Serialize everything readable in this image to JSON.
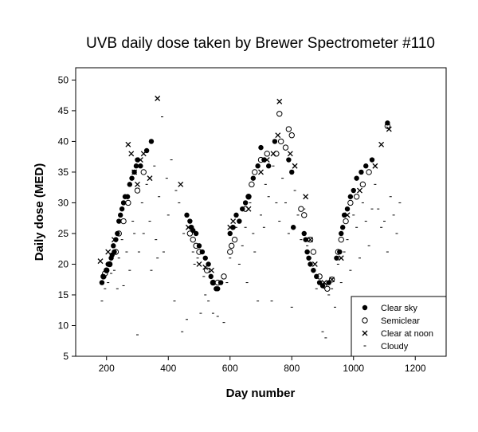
{
  "chart_data": {
    "type": "scatter",
    "title": "UVB daily dose taken by Brewer Spectrometer #110",
    "xlabel": "Day number",
    "ylabel": "Daily dose (MED)",
    "xlim": [
      100,
      1300
    ],
    "ylim": [
      5,
      52
    ],
    "xticks": [
      200,
      400,
      600,
      800,
      1000,
      1200
    ],
    "yticks": [
      5,
      10,
      15,
      20,
      25,
      30,
      35,
      40,
      45,
      50
    ],
    "grid": false,
    "legend_position": "bottom-right",
    "series": [
      {
        "name": "Clear sky",
        "marker": "filled-circle",
        "color": "#000000",
        "x": [
          185,
          190,
          200,
          205,
          210,
          215,
          218,
          222,
          225,
          230,
          235,
          240,
          245,
          250,
          255,
          260,
          268,
          275,
          282,
          290,
          296,
          300,
          310,
          330,
          345,
          460,
          470,
          475,
          480,
          490,
          500,
          510,
          520,
          530,
          538,
          545,
          555,
          560,
          570,
          600,
          610,
          620,
          630,
          640,
          650,
          660,
          675,
          690,
          700,
          710,
          725,
          745,
          790,
          800,
          805,
          840,
          845,
          850,
          855,
          860,
          870,
          880,
          890,
          900,
          920,
          945,
          955,
          960,
          965,
          970,
          980,
          990,
          1000,
          1010,
          1025,
          1040,
          1060,
          1110
        ],
        "y": [
          17,
          18,
          19,
          20,
          20,
          21,
          21.5,
          23,
          22,
          24,
          25,
          27,
          28,
          29,
          30,
          31,
          31,
          33,
          34,
          35,
          36,
          37,
          36,
          38.5,
          40,
          28,
          27,
          26,
          25.5,
          25,
          23,
          22,
          21,
          20,
          18,
          17,
          16,
          16,
          17,
          25,
          26,
          28,
          27,
          29,
          30,
          31,
          34,
          36,
          39,
          37,
          36,
          40,
          37,
          35,
          26,
          25,
          24,
          22,
          21,
          20,
          19,
          18,
          17,
          16.5,
          17,
          21,
          22,
          25,
          26,
          28,
          29,
          31,
          32,
          34,
          35,
          36,
          37,
          43
        ]
      },
      {
        "name": "Semiclear",
        "marker": "open-circle",
        "color": "#000000",
        "x": [
          190,
          195,
          200,
          210,
          230,
          240,
          255,
          270,
          300,
          320,
          470,
          480,
          490,
          500,
          525,
          545,
          560,
          580,
          600,
          605,
          615,
          650,
          660,
          670,
          680,
          700,
          720,
          750,
          760,
          765,
          780,
          790,
          800,
          830,
          840,
          860,
          870,
          890,
          905,
          915,
          930,
          950,
          960,
          975,
          990,
          1010,
          1030,
          1050,
          1110
        ],
        "y": [
          18,
          18.5,
          19,
          20,
          22,
          25,
          27,
          30,
          32,
          35,
          25,
          24,
          23,
          22,
          19,
          17,
          17,
          18,
          22,
          23,
          24,
          29,
          31,
          33,
          35,
          37,
          38,
          38,
          44.5,
          40,
          39,
          42,
          41,
          29,
          28,
          24,
          22,
          18,
          16.5,
          16,
          17.5,
          22,
          24,
          27,
          30,
          31,
          33,
          35,
          42.5
        ]
      },
      {
        "name": "Clear at noon",
        "marker": "cross",
        "color": "#000000",
        "x": [
          180,
          205,
          225,
          270,
          280,
          290,
          300,
          310,
          320,
          340,
          365,
          440,
          465,
          500,
          520,
          540,
          600,
          610,
          660,
          700,
          720,
          740,
          755,
          760,
          795,
          810,
          845,
          860,
          875,
          905,
          930,
          960,
          980,
          1020,
          1070,
          1090,
          1115
        ],
        "y": [
          20.5,
          22,
          24,
          39.5,
          38,
          35,
          33,
          37,
          38,
          34,
          47,
          33,
          26,
          20,
          19.5,
          19,
          26,
          27,
          29,
          35,
          37,
          38,
          41,
          46.5,
          38,
          36,
          31,
          24,
          20,
          17,
          17.5,
          21,
          28,
          32,
          36,
          39.5,
          42
        ]
      },
      {
        "name": "Cloudy",
        "marker": "dash",
        "color": "#000000",
        "x": [
          185,
          195,
          205,
          215,
          225,
          235,
          240,
          250,
          255,
          265,
          275,
          285,
          290,
          300,
          305,
          315,
          320,
          330,
          340,
          345,
          355,
          360,
          365,
          370,
          380,
          385,
          395,
          400,
          410,
          420,
          425,
          435,
          445,
          450,
          460,
          465,
          480,
          485,
          495,
          505,
          515,
          520,
          530,
          545,
          560,
          580,
          590,
          600,
          610,
          620,
          630,
          640,
          650,
          655,
          665,
          675,
          680,
          690,
          700,
          710,
          715,
          725,
          735,
          740,
          750,
          760,
          770,
          780,
          790,
          800,
          810,
          820,
          830,
          840,
          850,
          860,
          870,
          880,
          900,
          910,
          920,
          930,
          940,
          950,
          960,
          970,
          980,
          990,
          1000,
          1010,
          1020,
          1030,
          1040,
          1050,
          1060,
          1070,
          1080,
          1090,
          1100,
          1110,
          1120,
          1130,
          1140,
          1150
        ],
        "y": [
          14,
          16,
          17,
          18.5,
          19,
          16,
          21,
          24,
          16.5,
          22,
          19,
          27,
          25,
          8.5,
          22,
          30,
          25,
          33,
          27,
          19,
          36,
          24,
          21,
          31,
          44,
          22,
          34,
          28,
          37,
          14,
          32,
          30,
          9,
          25,
          11,
          26,
          22,
          20,
          21,
          12,
          18,
          15,
          14,
          12,
          11.5,
          10.5,
          17,
          21,
          24,
          26,
          20,
          23,
          26,
          17,
          30,
          25,
          22,
          14,
          28,
          26,
          33,
          31,
          14,
          36,
          30,
          27,
          34,
          30,
          25,
          13,
          32,
          28,
          24,
          29,
          23,
          21,
          19,
          16,
          9,
          8,
          15,
          16,
          13,
          20,
          17,
          22,
          24,
          19,
          28,
          26,
          21,
          30,
          27,
          23,
          29,
          33,
          29,
          26,
          27,
          22,
          31,
          28,
          25,
          30
        ]
      }
    ]
  }
}
